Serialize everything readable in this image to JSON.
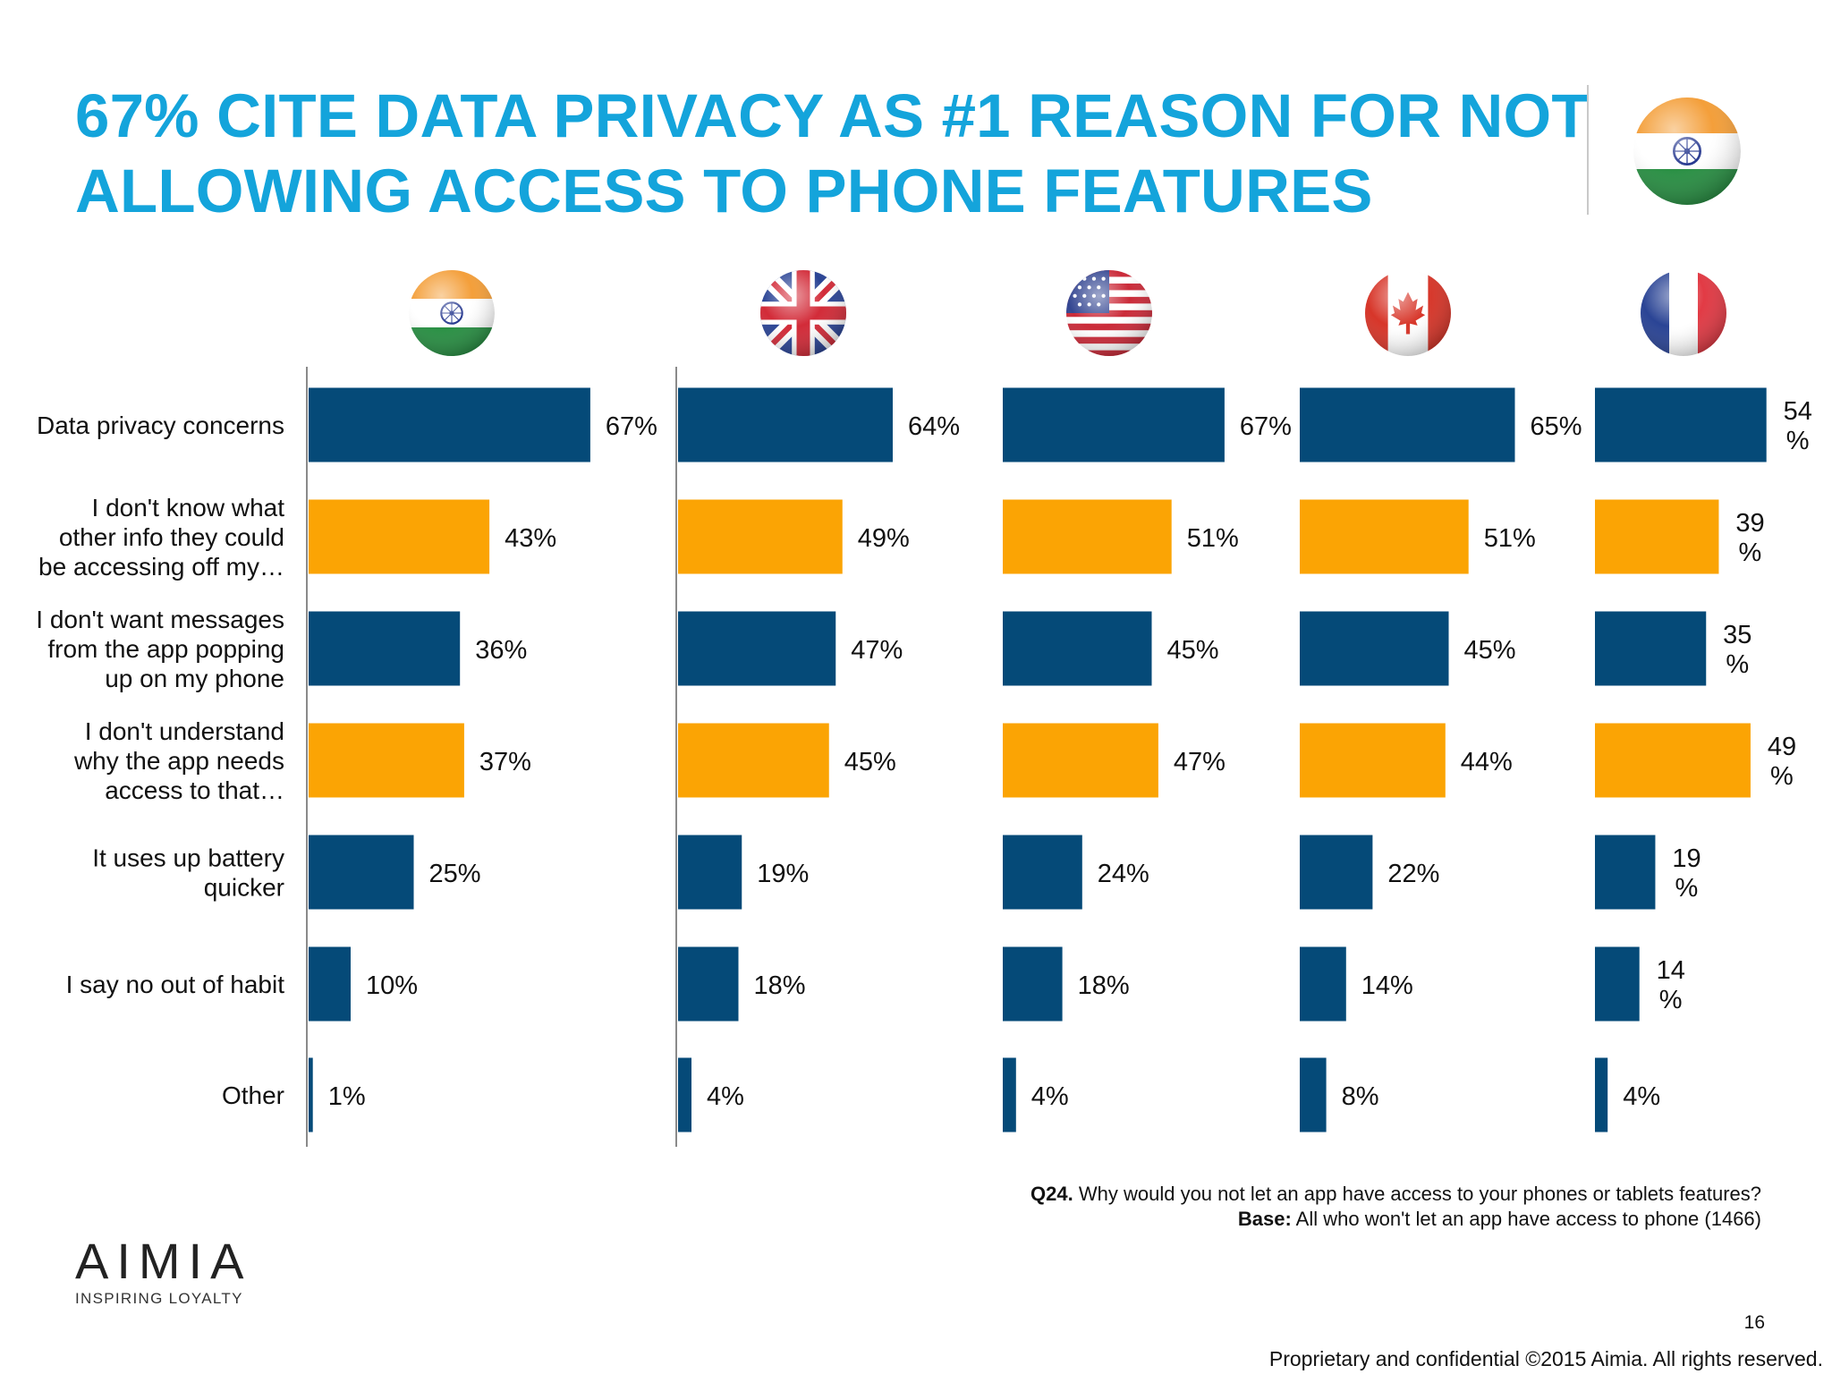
{
  "header": {
    "title_line1": "67% CITE DATA PRIVACY AS #1 REASON FOR NOT",
    "title_line2": "ALLOWING ACCESS TO PHONE FEATURES",
    "header_flag": "india-flag-icon"
  },
  "colors": {
    "title": "#14a4db",
    "navy": "#054a78",
    "orange": "#fba404",
    "axis": "#8a8a8a"
  },
  "chart_data": {
    "type": "bar",
    "orientation": "horizontal",
    "categories": [
      "Data privacy concerns",
      "I don't know what other info they could be accessing off my…",
      "I don't want messages from the app popping up on my phone",
      "I don't understand why the app needs access to that…",
      "It uses up battery quicker",
      "I say no out of habit",
      "Other"
    ],
    "category_lines": [
      [
        "Data privacy concerns"
      ],
      [
        "I don't know what",
        "other info they could",
        "be accessing off my…"
      ],
      [
        "I don't want messages",
        "from the app popping",
        "up on my phone"
      ],
      [
        "I don't understand",
        "why the app needs",
        "access to that…"
      ],
      [
        "It uses up battery",
        "quicker"
      ],
      [
        "I say no out of habit"
      ],
      [
        "Other"
      ]
    ],
    "bar_colors": [
      "navy",
      "orange",
      "navy",
      "orange",
      "navy",
      "navy",
      "navy"
    ],
    "series": [
      {
        "flag": "india-flag-icon",
        "values": [
          67,
          43,
          36,
          37,
          25,
          10,
          1
        ],
        "labels": [
          "67%",
          "43%",
          "36%",
          "37%",
          "25%",
          "10%",
          "1%"
        ]
      },
      {
        "flag": "uk-flag-icon",
        "values": [
          64,
          49,
          47,
          45,
          19,
          18,
          4
        ],
        "labels": [
          "64%",
          "49%",
          "47%",
          "45%",
          "19%",
          "18%",
          "4%"
        ]
      },
      {
        "flag": "usa-flag-icon",
        "values": [
          67,
          51,
          45,
          47,
          24,
          18,
          4
        ],
        "labels": [
          "67%",
          "51%",
          "45%",
          "47%",
          "24%",
          "18%",
          "4%"
        ]
      },
      {
        "flag": "canada-flag-icon",
        "values": [
          65,
          51,
          45,
          44,
          22,
          14,
          8
        ],
        "labels": [
          "65%",
          "51%",
          "45%",
          "44%",
          "22%",
          "14%",
          "8%"
        ]
      },
      {
        "flag": "france-flag-icon",
        "values": [
          54,
          39,
          35,
          49,
          19,
          14,
          4
        ],
        "labels": [
          "54\n%",
          "39\n%",
          "35\n%",
          "49\n%",
          "19\n%",
          "14\n%",
          "4%"
        ]
      }
    ],
    "units": "%"
  },
  "footnote": {
    "q_label": "Q24.",
    "q_text": " Why would you not let an app have access to your phones or tablets features?",
    "base_label": "Base:",
    "base_text": " All who won't let an app have access to phone (1466)"
  },
  "logo": {
    "word": "AIMIA",
    "tagline": "INSPIRING LOYALTY"
  },
  "page_number": "16",
  "copyright": "Proprietary and confidential ©2015 Aimia. All rights reserved."
}
